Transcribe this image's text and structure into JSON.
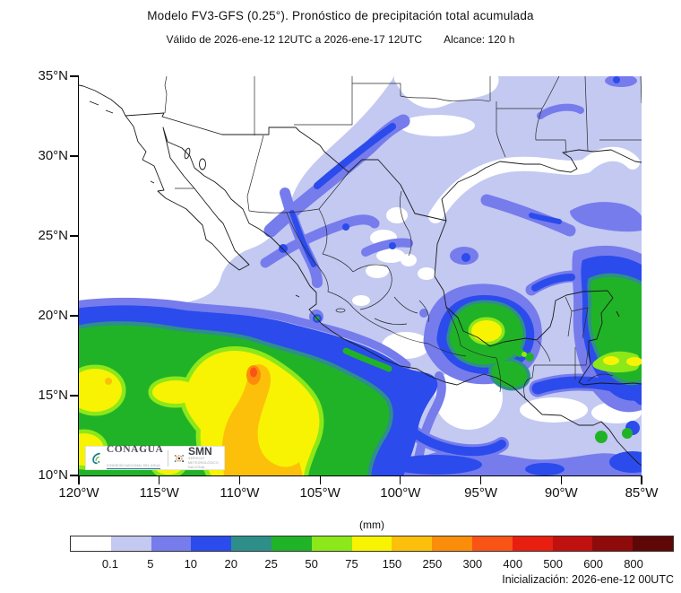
{
  "header": {
    "title": "Modelo FV3-GFS (0.25°). Pronóstico de precipitación total acumulada",
    "valid_text": "Válido de 2026-ene-12 12UTC a 2026-ene-17 12UTC",
    "range_text": "Alcance: 120 h"
  },
  "footer": {
    "init_text": "Inicialización: 2026-ene-12 00UTC"
  },
  "axes": {
    "lat": {
      "values": [
        35,
        30,
        25,
        20,
        15,
        10
      ],
      "labels": [
        "35°N",
        "30°N",
        "25°N",
        "20°N",
        "15°N",
        "10°N"
      ]
    },
    "lon": {
      "values": [
        -120,
        -115,
        -110,
        -105,
        -100,
        -95,
        -90,
        -85
      ],
      "labels": [
        "120°W",
        "115°W",
        "110°W",
        "105°W",
        "100°W",
        "95°W",
        "90°W",
        "85°W"
      ]
    }
  },
  "colorbar": {
    "units_label": "(mm)",
    "boundary_labels": [
      "0.1",
      "5",
      "10",
      "20",
      "25",
      "50",
      "75",
      "150",
      "250",
      "300",
      "400",
      "500",
      "600",
      "800"
    ],
    "colors": [
      "#ffffff",
      "#c3c9f1",
      "#767cec",
      "#2b4bec",
      "#2e8f8a",
      "#21b327",
      "#8ce818",
      "#f7f303",
      "#fcc00a",
      "#fc8d0a",
      "#f95316",
      "#e81f10",
      "#c11010",
      "#8f0a0a",
      "#5e0707"
    ]
  },
  "logos": {
    "conagua": {
      "name": "CONAGUA",
      "tagline": "COMISIÓN NACIONAL DEL AGUA"
    },
    "smn": {
      "name": "SMN",
      "tagline": "SERVICIO METEOROLÓGICO NACIONAL"
    }
  },
  "chart_data": {
    "type": "heatmap",
    "title": "Modelo FV3-GFS (0.25°). Pronóstico de precipitación total acumulada",
    "subtitle": "Válido de 2026-ene-12 12UTC a 2026-ene-17 12UTC  Alcance: 120 h",
    "initialization": "2026-ene-12 00UTC",
    "forecast_hours": 120,
    "region": "México, sur de EUA, Golfo de México y América Central",
    "lat_range_deg_n": [
      10,
      35
    ],
    "lon_range_deg_w": [
      120,
      85
    ],
    "grid": false,
    "legend_position": "bottom",
    "units": "mm",
    "levels_mm": [
      0.1,
      5,
      10,
      20,
      25,
      50,
      75,
      150,
      250,
      300,
      400,
      500,
      600,
      800
    ],
    "level_colors": [
      "#ffffff",
      "#c3c9f1",
      "#767cec",
      "#2b4bec",
      "#2e8f8a",
      "#21b327",
      "#8ce818",
      "#f7f303",
      "#fcc00a",
      "#fc8d0a",
      "#f95316",
      "#e81f10",
      "#c11010",
      "#8f0a0a",
      "#5e0707"
    ],
    "features": [
      {
        "area": "Pacífico frente a Jalisco/Colima (≈111-106W, 12-18N)",
        "max_mm": "250-300",
        "desc": "Sistema extenso con núcleo amarillo-naranja; máximo puntual 250-300 mm"
      },
      {
        "area": "Sierra de Veracruz/Oaxaca (≈97-95W, 17-19N)",
        "max_mm": "75-150",
        "desc": "Núcleo amarillo rodeado de verde"
      },
      {
        "area": "Caribe al este de Yucatán/Belice (≈87-85W, 16-22N)",
        "max_mm": "75-150",
        "desc": "Banda verde con puntos amarillos"
      },
      {
        "area": "Norte de México / frontera con Texas",
        "max_mm": "10-20",
        "desc": "Bandas diagonales azul-moradas de 5-20 mm"
      },
      {
        "area": "Golfo de México",
        "max_mm": "5-10",
        "desc": "Lavanda generalizada (0.1-5 mm) con vetas moradas"
      },
      {
        "area": "Baja California y noroeste",
        "max_mm": "0",
        "desc": "Sin precipitación (blanco)"
      }
    ]
  }
}
